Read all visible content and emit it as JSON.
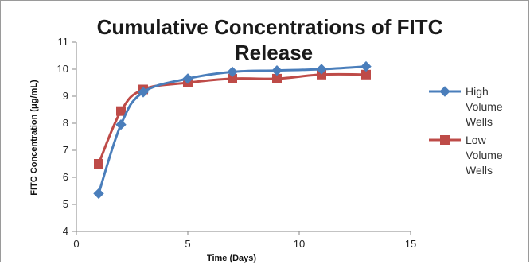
{
  "chart_data": {
    "type": "line",
    "title_lines": [
      "Cumulative Concentrations of FITC",
      "Release"
    ],
    "xlabel": "Time (Days)",
    "ylabel": "FITC Concentration (μg/mL)",
    "xlim": [
      0,
      15
    ],
    "ylim": [
      4,
      11
    ],
    "x_ticks": [
      0,
      5,
      10,
      15
    ],
    "y_ticks": [
      4,
      5,
      6,
      7,
      8,
      9,
      10,
      11
    ],
    "grid": false,
    "legend_position": "right",
    "series": [
      {
        "legend_lines": [
          "High",
          "Volume",
          "Wells"
        ],
        "color": "#4a7ebb",
        "marker": "diamond",
        "x": [
          1,
          2,
          3,
          5,
          7,
          9,
          11,
          13
        ],
        "values": [
          5.4,
          7.95,
          9.15,
          9.65,
          9.9,
          9.95,
          10.0,
          10.1
        ]
      },
      {
        "legend_lines": [
          "Low",
          "Volume",
          "Wells"
        ],
        "color": "#be4b48",
        "marker": "square",
        "x": [
          1,
          2,
          3,
          5,
          7,
          9,
          11,
          13
        ],
        "values": [
          6.5,
          8.45,
          9.25,
          9.5,
          9.65,
          9.65,
          9.8,
          9.8
        ]
      }
    ]
  }
}
